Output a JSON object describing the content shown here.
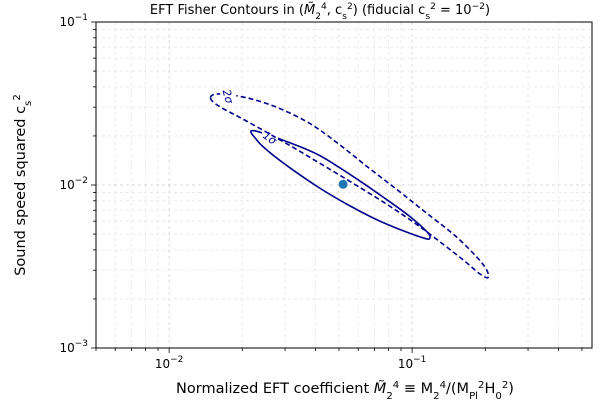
{
  "chart_data": {
    "type": "contour",
    "title_parts": [
      "EFT Fisher Contours in (",
      "M̃",
      "2",
      "4",
      ", c",
      "s",
      "2",
      ") (fiducial c",
      "s",
      "2",
      " = 10",
      "−2",
      ")"
    ],
    "xlabel_parts": [
      "Normalized EFT coefficient ",
      "M̃",
      "2",
      "4",
      " ≡ M",
      "2",
      "4",
      "/(M",
      "Pl",
      "2",
      "H",
      "0",
      "2",
      ")"
    ],
    "ylabel_parts": [
      "Sound speed squared c",
      "s",
      "2"
    ],
    "xscale": "log",
    "yscale": "log",
    "xlim": [
      0.005,
      0.55
    ],
    "ylim": [
      0.001,
      0.1
    ],
    "xticks": [
      {
        "value": 0.01,
        "base": "10",
        "exp": "−2"
      },
      {
        "value": 0.1,
        "base": "10",
        "exp": "−1"
      }
    ],
    "yticks": [
      {
        "value": 0.001,
        "base": "10",
        "exp": "−3"
      },
      {
        "value": 0.01,
        "base": "10",
        "exp": "−2"
      },
      {
        "value": 0.1,
        "base": "10",
        "exp": "−1"
      }
    ],
    "grid": true,
    "fiducial_point": {
      "x": 0.052,
      "y": 0.0101,
      "color": "#1f77b4"
    },
    "contours": [
      {
        "label": "1σ",
        "level": 1,
        "style": "solid",
        "color": "#00008b",
        "label_at": {
          "x": 0.026,
          "y": 0.0195
        },
        "points": [
          [
            0.0225,
            0.0215
          ],
          [
            0.023,
            0.0188
          ],
          [
            0.026,
            0.0158
          ],
          [
            0.032,
            0.0125
          ],
          [
            0.042,
            0.0095
          ],
          [
            0.055,
            0.0075
          ],
          [
            0.072,
            0.0061
          ],
          [
            0.093,
            0.0052
          ],
          [
            0.113,
            0.0047
          ],
          [
            0.118,
            0.0047
          ],
          [
            0.116,
            0.0051
          ],
          [
            0.098,
            0.0064
          ],
          [
            0.078,
            0.0082
          ],
          [
            0.062,
            0.0104
          ],
          [
            0.049,
            0.0131
          ],
          [
            0.038,
            0.0162
          ]
        ]
      },
      {
        "label": "2σ",
        "level": 2,
        "style": "dashed",
        "color": "#00008b",
        "label_at": {
          "x": 0.0175,
          "y": 0.035
        },
        "points": [
          [
            0.0148,
            0.0342
          ],
          [
            0.016,
            0.0305
          ],
          [
            0.02,
            0.0255
          ],
          [
            0.026,
            0.0205
          ],
          [
            0.034,
            0.0163
          ],
          [
            0.045,
            0.0127
          ],
          [
            0.06,
            0.0098
          ],
          [
            0.08,
            0.0075
          ],
          [
            0.105,
            0.0057
          ],
          [
            0.135,
            0.0043
          ],
          [
            0.165,
            0.0034
          ],
          [
            0.19,
            0.00285
          ],
          [
            0.205,
            0.0027
          ],
          [
            0.203,
            0.003
          ],
          [
            0.185,
            0.0036
          ],
          [
            0.15,
            0.0049
          ],
          [
            0.115,
            0.0067
          ],
          [
            0.088,
            0.0092
          ],
          [
            0.066,
            0.0128
          ],
          [
            0.05,
            0.0178
          ],
          [
            0.038,
            0.0238
          ],
          [
            0.028,
            0.0298
          ],
          [
            0.021,
            0.0342
          ],
          [
            0.016,
            0.0362
          ]
        ]
      }
    ]
  }
}
